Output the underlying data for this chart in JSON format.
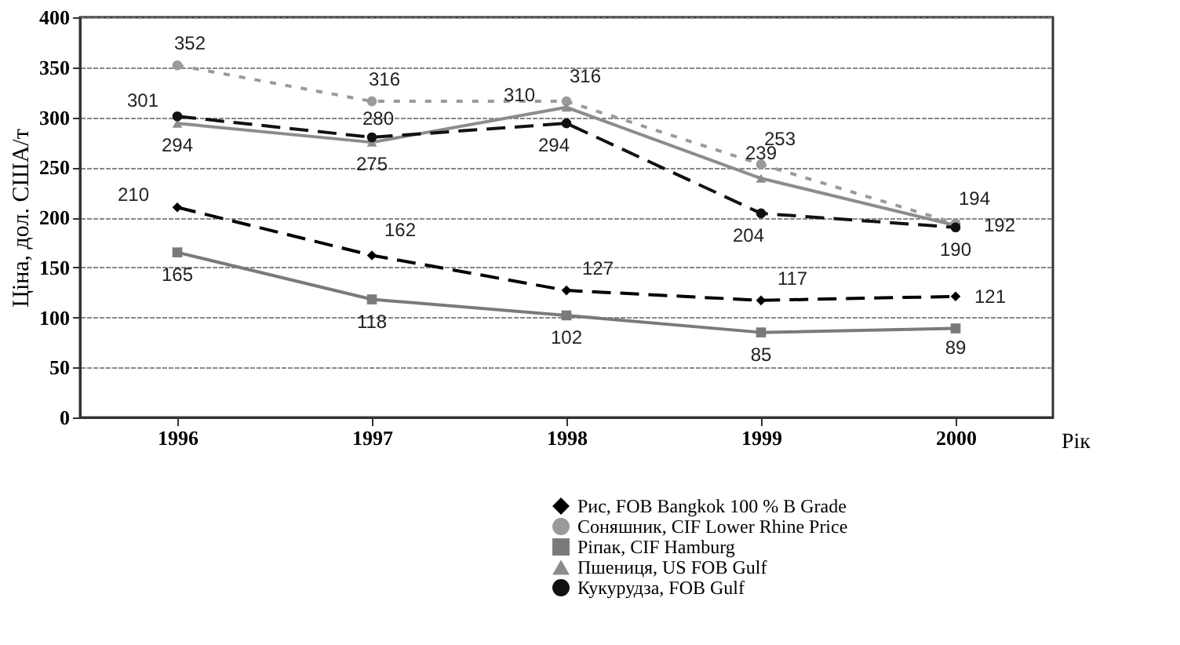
{
  "chart_data": {
    "type": "line",
    "ylabel": "Ціна, дол. США/т",
    "xlabel": "Рік",
    "categories": [
      "1996",
      "1997",
      "1998",
      "1999",
      "2000"
    ],
    "ylim": [
      0,
      400
    ],
    "yticks": [
      0,
      50,
      100,
      150,
      200,
      250,
      300,
      350,
      400
    ],
    "grid": "y",
    "legend": "bottom right",
    "data_labels": true,
    "series": [
      {
        "name": "Рис, FOB Bangkok 100 % B Grade",
        "color": "#000000",
        "line_style": "dashed",
        "marker": "diamond",
        "values": [
          210,
          162,
          127,
          117,
          121
        ]
      },
      {
        "name": "Соняшник, CIF Lower Rhine Price",
        "color": "#9a9a9a",
        "line_style": "dotted",
        "marker": "circle",
        "values": [
          352,
          316,
          316,
          253,
          194
        ]
      },
      {
        "name": "Ріпак, CIF Hamburg",
        "color": "#7a7a7a",
        "line_style": "solid",
        "marker": "square",
        "values": [
          165,
          118,
          102,
          85,
          89
        ]
      },
      {
        "name": "Пшениця, US FOB Gulf",
        "color": "#8c8c8c",
        "line_style": "solid",
        "marker": "triangle",
        "values": [
          294,
          275,
          310,
          239,
          192
        ]
      },
      {
        "name": "Кукурудза, FOB Gulf",
        "color": "#111111",
        "line_style": "dashed",
        "marker": "circle",
        "values": [
          301,
          280,
          294,
          204,
          190
        ]
      }
    ]
  }
}
